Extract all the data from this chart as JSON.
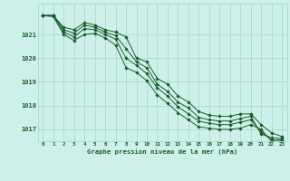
{
  "title": "Graphe pression niveau de la mer (hPa)",
  "background_color": "#cff0ea",
  "grid_color": "#aad8d0",
  "line_color": "#1a5c2a",
  "x_labels": [
    "0",
    "1",
    "2",
    "3",
    "4",
    "5",
    "6",
    "7",
    "8",
    "9",
    "10",
    "11",
    "12",
    "13",
    "14",
    "15",
    "16",
    "17",
    "18",
    "19",
    "20",
    "21",
    "22",
    "23"
  ],
  "ylim": [
    1016.5,
    1022.3
  ],
  "yticks": [
    1017,
    1018,
    1019,
    1020,
    1021
  ],
  "series": [
    [
      1021.8,
      1021.8,
      1021.3,
      1021.2,
      1021.5,
      1021.4,
      1021.2,
      1021.1,
      1020.9,
      1020.0,
      1019.85,
      1019.15,
      1018.9,
      1018.4,
      1018.15,
      1017.75,
      1017.6,
      1017.55,
      1017.55,
      1017.65,
      1017.65,
      1017.2,
      1016.85,
      1016.7
    ],
    [
      1021.8,
      1021.8,
      1021.2,
      1021.05,
      1021.4,
      1021.3,
      1021.1,
      1020.95,
      1020.4,
      1019.85,
      1019.6,
      1018.9,
      1018.6,
      1018.15,
      1017.9,
      1017.5,
      1017.4,
      1017.35,
      1017.35,
      1017.45,
      1017.55,
      1016.8,
      1016.65,
      1016.6
    ],
    [
      1021.8,
      1021.8,
      1021.1,
      1020.9,
      1021.25,
      1021.2,
      1021.0,
      1020.8,
      1020.0,
      1019.7,
      1019.35,
      1018.75,
      1018.4,
      1017.95,
      1017.65,
      1017.35,
      1017.25,
      1017.2,
      1017.2,
      1017.3,
      1017.4,
      1016.9,
      1016.55,
      1016.55
    ],
    [
      1021.8,
      1021.75,
      1021.0,
      1020.75,
      1021.0,
      1021.05,
      1020.85,
      1020.55,
      1019.6,
      1019.4,
      1019.05,
      1018.45,
      1018.1,
      1017.7,
      1017.4,
      1017.1,
      1017.05,
      1017.0,
      1017.0,
      1017.05,
      1017.2,
      1017.0,
      1016.5,
      1016.5
    ]
  ]
}
